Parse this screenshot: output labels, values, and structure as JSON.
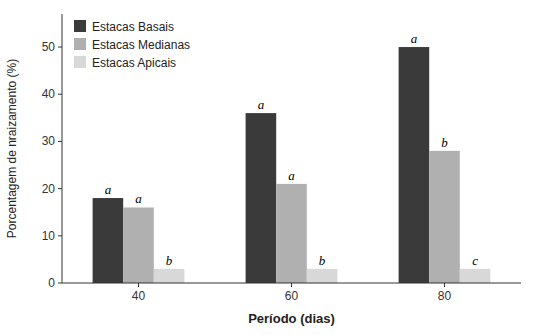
{
  "chart_data": {
    "type": "bar",
    "categories": [
      "40",
      "60",
      "80"
    ],
    "series": [
      {
        "name": "Estacas Basais",
        "color": "#3a3a3a",
        "values": [
          18,
          36,
          50
        ],
        "annotations": [
          "a",
          "a",
          "a"
        ]
      },
      {
        "name": "Estacas Medianas",
        "color": "#b0b0b0",
        "values": [
          16,
          21,
          28
        ],
        "annotations": [
          "a",
          "a",
          "b"
        ]
      },
      {
        "name": "Estacas Apicais",
        "color": "#d8d8d8",
        "values": [
          3,
          3,
          3
        ],
        "annotations": [
          "b",
          "b",
          "c"
        ]
      }
    ],
    "ylabel": "Porcentagem de nraizamento (%)",
    "xlabel": "Período (dias)",
    "ylim": [
      0,
      57
    ],
    "yticks": [
      0,
      10,
      20,
      30,
      40,
      50
    ],
    "grid": false,
    "legend": "upper left"
  }
}
